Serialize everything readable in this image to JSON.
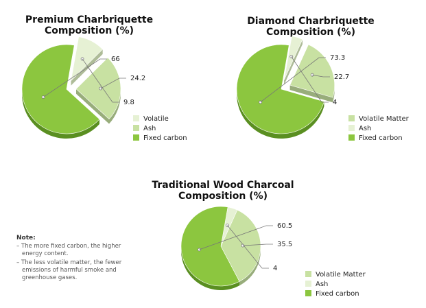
{
  "colors": {
    "fixed_carbon": "#8cc63f",
    "fixed_carbon_side": "#5a8f21",
    "ash_medium": "#c8e1a2",
    "ash_medium_side": "#98ad7b",
    "pale": "#e6f1d4",
    "pale_side": "#aebc98",
    "leader": "#777777"
  },
  "chart_data": [
    {
      "type": "pie",
      "title": [
        "Premium Charbriquette",
        "Composition (%)"
      ],
      "slices": [
        {
          "label": "Volatile",
          "value": 9.8,
          "label_text": "9.8",
          "color": "#e6f1d4",
          "exploded": true
        },
        {
          "label": "Ash",
          "value": 24.2,
          "label_text": "24.2",
          "color": "#c8e1a2",
          "exploded": true
        },
        {
          "label": "Fixed carbon",
          "value": 66,
          "label_text": "66",
          "color": "#8cc63f",
          "exploded": false
        }
      ],
      "legend": [
        {
          "label": "Volatile",
          "color": "#e6f1d4"
        },
        {
          "label": "Ash",
          "color": "#c8e1a2"
        },
        {
          "label": "Fixed carbon",
          "color": "#8cc63f"
        }
      ]
    },
    {
      "type": "pie",
      "title": [
        "Diamond Charbriquette",
        "Composition (%)"
      ],
      "slices": [
        {
          "label": "Ash",
          "value": 4,
          "label_text": "4",
          "color": "#e6f1d4",
          "exploded": true
        },
        {
          "label": "Volatile Matter",
          "value": 22.7,
          "label_text": "22.7",
          "color": "#c8e1a2",
          "exploded": true
        },
        {
          "label": "Fixed carbon",
          "value": 73.3,
          "label_text": "73.3",
          "color": "#8cc63f",
          "exploded": false
        }
      ],
      "legend": [
        {
          "label": "Volatile Matter",
          "color": "#c8e1a2"
        },
        {
          "label": "Ash",
          "color": "#e6f1d4"
        },
        {
          "label": "Fixed carbon",
          "color": "#8cc63f"
        }
      ]
    },
    {
      "type": "pie",
      "title": [
        "Traditional Wood Charcoal",
        "Composition (%)"
      ],
      "slices": [
        {
          "label": "Ash",
          "value": 4,
          "label_text": "4",
          "color": "#e6f1d4",
          "exploded": false
        },
        {
          "label": "Volatile Matter",
          "value": 35.5,
          "label_text": "35.5",
          "color": "#c8e1a2",
          "exploded": false
        },
        {
          "label": "Fixed carbon",
          "value": 60.5,
          "label_text": "60.5",
          "color": "#8cc63f",
          "exploded": false
        }
      ],
      "legend": [
        {
          "label": "Volatile Matter",
          "color": "#c8e1a2"
        },
        {
          "label": "Ash",
          "color": "#e6f1d4"
        },
        {
          "label": "Fixed carbon",
          "color": "#8cc63f"
        }
      ]
    }
  ],
  "note": {
    "title": "Note:",
    "lines": [
      "– The more fixed carbon, the higher energy content.",
      "– The less volatile matter, the fewer emissions of harmful smoke and greenhouse gases."
    ]
  }
}
